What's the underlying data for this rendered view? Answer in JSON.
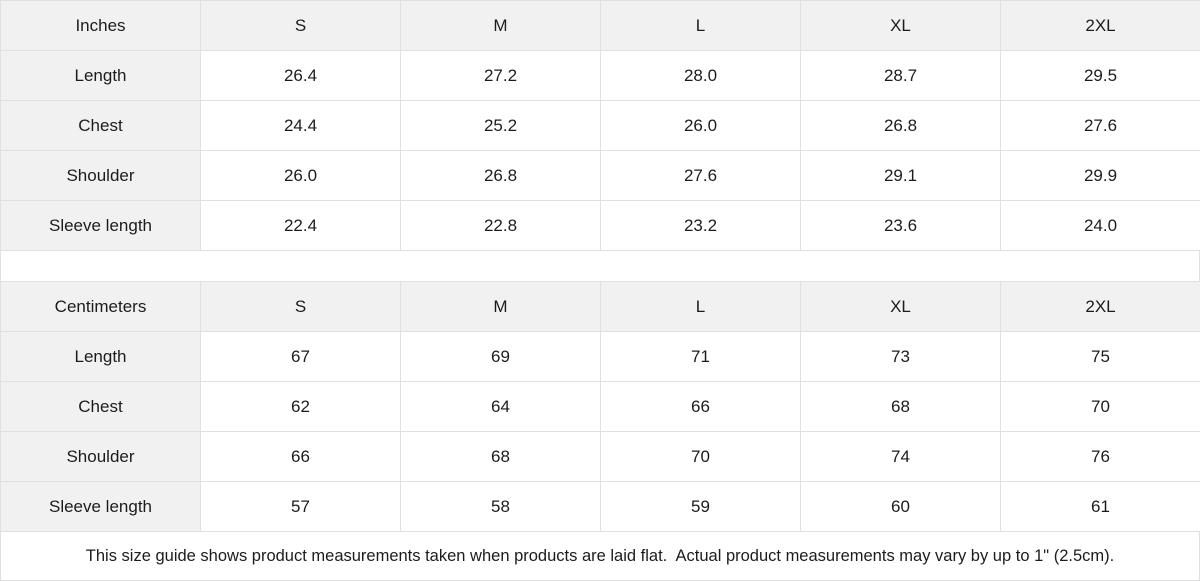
{
  "theme": {
    "header_bg": "#f1f1f1",
    "cell_bg": "#ffffff",
    "border_color": "#e0e0e0",
    "text_color": "#1c1c1c"
  },
  "inches_table": {
    "unit_label": "Inches",
    "columns": [
      "S",
      "M",
      "L",
      "XL",
      "2XL"
    ],
    "rows": [
      {
        "label": "Length",
        "values": [
          "26.4",
          "27.2",
          "28.0",
          "28.7",
          "29.5"
        ]
      },
      {
        "label": "Chest",
        "values": [
          "24.4",
          "25.2",
          "26.0",
          "26.8",
          "27.6"
        ]
      },
      {
        "label": "Shoulder",
        "values": [
          "26.0",
          "26.8",
          "27.6",
          "29.1",
          "29.9"
        ]
      },
      {
        "label": "Sleeve length",
        "values": [
          "22.4",
          "22.8",
          "23.2",
          "23.6",
          "24.0"
        ]
      }
    ]
  },
  "centimeters_table": {
    "unit_label": "Centimeters",
    "columns": [
      "S",
      "M",
      "L",
      "XL",
      "2XL"
    ],
    "rows": [
      {
        "label": "Length",
        "values": [
          "67",
          "69",
          "71",
          "73",
          "75"
        ]
      },
      {
        "label": "Chest",
        "values": [
          "62",
          "64",
          "66",
          "68",
          "70"
        ]
      },
      {
        "label": "Shoulder",
        "values": [
          "66",
          "68",
          "70",
          "74",
          "76"
        ]
      },
      {
        "label": "Sleeve length",
        "values": [
          "57",
          "58",
          "59",
          "60",
          "61"
        ]
      }
    ]
  },
  "footer": {
    "note": "This size guide shows product measurements taken when products are laid flat.  Actual product measurements may vary by up to 1\" (2.5cm)."
  }
}
